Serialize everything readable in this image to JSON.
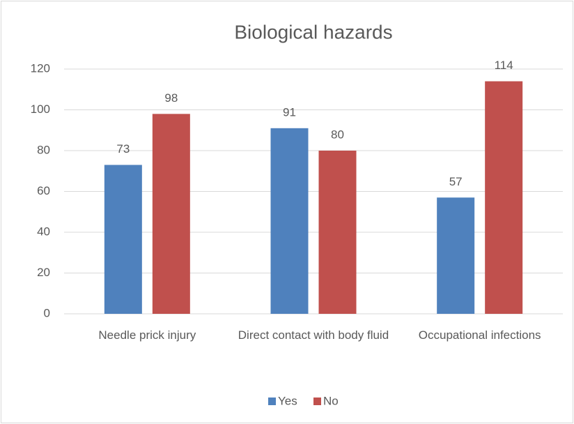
{
  "chart_data": {
    "type": "bar",
    "title": "Biological hazards",
    "categories": [
      "Needle prick injury",
      "Direct contact with body fluid",
      "Occupational infections"
    ],
    "series": [
      {
        "name": "Yes",
        "color": "#4f81bd",
        "values": [
          73,
          91,
          57
        ]
      },
      {
        "name": "No",
        "color": "#c0504d",
        "values": [
          98,
          80,
          114
        ]
      }
    ],
    "ylim": [
      0,
      120
    ],
    "yticks": [
      0,
      20,
      40,
      60,
      80,
      100,
      120
    ],
    "grid": true,
    "legend": "bottom"
  }
}
